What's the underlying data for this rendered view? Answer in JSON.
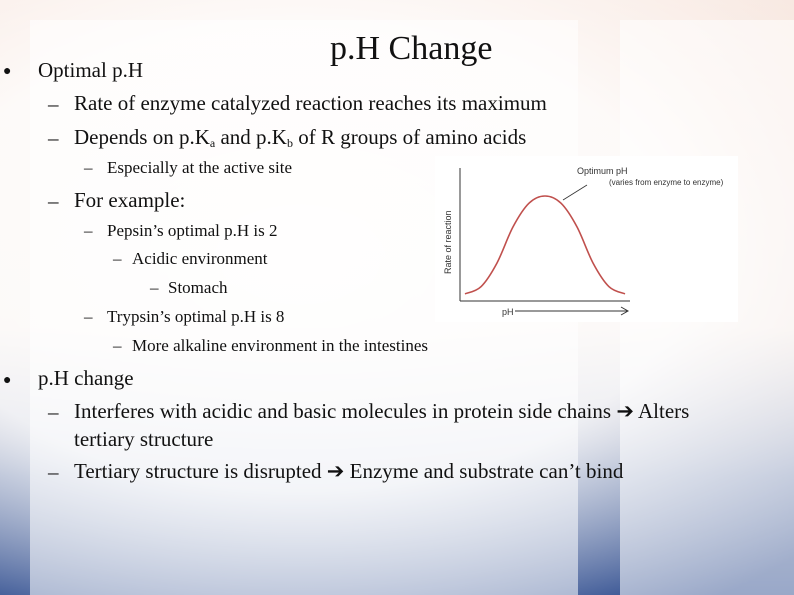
{
  "slide": {
    "title": "p.H Change",
    "b1": "Optimal p.H",
    "b1_1": "Rate of enzyme catalyzed reaction reaches its maximum",
    "b1_2_pre": "Depends on p.K",
    "b1_2_sub1": "a",
    "b1_2_mid": " and p.K",
    "b1_2_sub2": "b",
    "b1_2_post": " of R groups of amino acids",
    "b1_2_1": "Especially at the active site",
    "b1_3": "For example:",
    "b1_3_1": "Pepsin’s optimal p.H is 2",
    "b1_3_1_1": "Acidic environment",
    "b1_3_1_1_1": "Stomach",
    "b1_3_2": "Trypsin’s optimal p.H is 8",
    "b1_3_2_1": "More alkaline environment in the intestines",
    "b2": "p.H change",
    "b2_1a": "Interferes with acidic and basic molecules in protein side chains",
    "b2_1b": " Alters",
    "b2_1c": "tertiary structure",
    "b2_2a": "Tertiary structure is disrupted",
    "b2_2b": " Enzyme and substrate can’t bind",
    "bullet_glyph": "●",
    "dash_glyph": "–",
    "arrow_glyph": "➔"
  },
  "chart_data": {
    "type": "line",
    "ylabel": "Rate of reaction",
    "xlabel": "pH",
    "annotation_line1": "Optimum pH",
    "annotation_line2": "(varies from enzyme to enzyme)",
    "curve_color": "#c0504d",
    "x": [
      0,
      1,
      2,
      3,
      4,
      5,
      6,
      7,
      8,
      9,
      10
    ],
    "y": [
      0.05,
      0.12,
      0.35,
      0.7,
      0.93,
      1.0,
      0.93,
      0.7,
      0.35,
      0.12,
      0.05
    ]
  }
}
